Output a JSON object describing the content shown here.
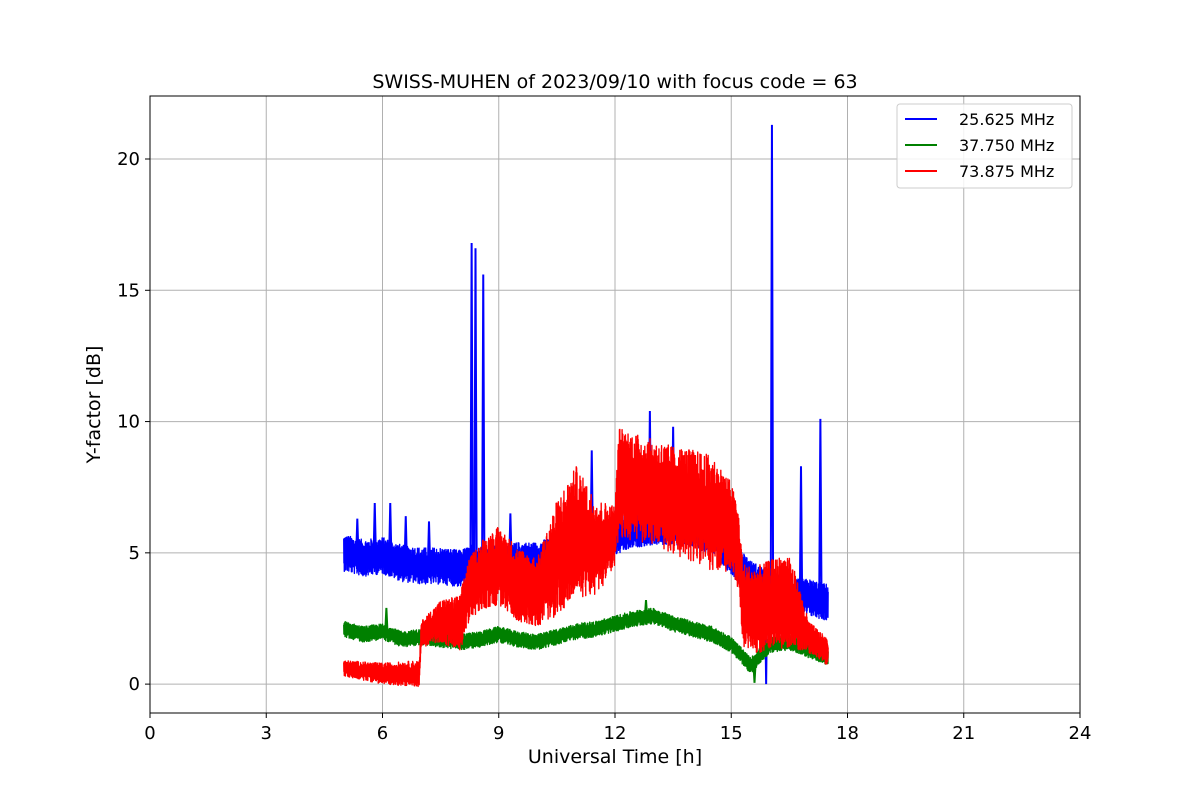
{
  "chart_data": {
    "type": "line",
    "title": "SWISS-MUHEN of 2023/09/10 with focus code = 63",
    "xlabel": "Universal Time [h]",
    "ylabel": "Y-factor [dB]",
    "xlim": [
      0,
      24
    ],
    "ylim": [
      -1.1,
      22.4
    ],
    "xticks": [
      0,
      3,
      6,
      9,
      12,
      15,
      18,
      21,
      24
    ],
    "yticks": [
      0,
      5,
      10,
      15,
      20
    ],
    "grid": true,
    "legend_position": "top-right",
    "series": [
      {
        "name": "25.625 MHz",
        "color": "#0000ff",
        "noise": 0.7,
        "points": [
          [
            5.0,
            5.0
          ],
          [
            5.5,
            4.8
          ],
          [
            6.0,
            4.9
          ],
          [
            6.5,
            4.6
          ],
          [
            7.0,
            4.5
          ],
          [
            7.5,
            4.5
          ],
          [
            8.0,
            4.4
          ],
          [
            8.3,
            4.6
          ],
          [
            8.6,
            4.5
          ],
          [
            9.0,
            4.6
          ],
          [
            9.5,
            4.7
          ],
          [
            10.0,
            4.7
          ],
          [
            10.5,
            5.0
          ],
          [
            11.0,
            5.3
          ],
          [
            11.5,
            5.4
          ],
          [
            12.0,
            5.6
          ],
          [
            12.5,
            5.9
          ],
          [
            13.0,
            6.0
          ],
          [
            13.5,
            6.0
          ],
          [
            14.0,
            5.9
          ],
          [
            14.5,
            5.6
          ],
          [
            15.0,
            4.9
          ],
          [
            15.5,
            4.0
          ],
          [
            16.0,
            3.6
          ],
          [
            16.5,
            3.3
          ],
          [
            17.0,
            3.3
          ],
          [
            17.5,
            3.1
          ]
        ],
        "spikes": [
          [
            5.35,
            6.3
          ],
          [
            5.8,
            6.9
          ],
          [
            6.2,
            6.9
          ],
          [
            6.6,
            6.4
          ],
          [
            7.2,
            6.2
          ],
          [
            8.3,
            16.8
          ],
          [
            8.4,
            16.6
          ],
          [
            8.6,
            15.6
          ],
          [
            9.3,
            6.5
          ],
          [
            11.4,
            8.9
          ],
          [
            12.9,
            10.4
          ],
          [
            13.5,
            9.8
          ],
          [
            16.05,
            21.3
          ],
          [
            16.8,
            8.3
          ],
          [
            17.3,
            10.1
          ]
        ],
        "dips": [
          [
            15.9,
            0.0
          ],
          [
            16.6,
            2.0
          ]
        ]
      },
      {
        "name": "37.750 MHz",
        "color": "#008000",
        "noise": 0.3,
        "points": [
          [
            5.0,
            2.1
          ],
          [
            5.5,
            1.9
          ],
          [
            6.0,
            2.0
          ],
          [
            6.5,
            1.7
          ],
          [
            7.0,
            1.8
          ],
          [
            7.5,
            1.7
          ],
          [
            8.0,
            1.6
          ],
          [
            8.5,
            1.7
          ],
          [
            9.0,
            1.9
          ],
          [
            9.5,
            1.7
          ],
          [
            10.0,
            1.6
          ],
          [
            10.5,
            1.8
          ],
          [
            11.0,
            2.0
          ],
          [
            11.5,
            2.1
          ],
          [
            12.0,
            2.3
          ],
          [
            12.5,
            2.5
          ],
          [
            13.0,
            2.6
          ],
          [
            13.5,
            2.3
          ],
          [
            14.0,
            2.1
          ],
          [
            14.5,
            1.9
          ],
          [
            15.0,
            1.5
          ],
          [
            15.5,
            0.7
          ],
          [
            16.0,
            1.5
          ],
          [
            16.5,
            1.6
          ],
          [
            17.0,
            1.3
          ],
          [
            17.5,
            1.0
          ]
        ],
        "spikes": [
          [
            6.1,
            2.9
          ],
          [
            12.8,
            3.2
          ]
        ],
        "dips": [
          [
            15.6,
            0.05
          ]
        ]
      },
      {
        "name": "73.875 MHz",
        "color": "#ff0000",
        "noise": 0.5,
        "points": [
          [
            5.0,
            0.6
          ],
          [
            5.5,
            0.5
          ],
          [
            6.0,
            0.4
          ],
          [
            6.5,
            0.4
          ],
          [
            6.95,
            0.4
          ],
          [
            7.0,
            1.9
          ],
          [
            7.5,
            2.4
          ],
          [
            8.0,
            2.3
          ],
          [
            8.2,
            3.5
          ],
          [
            8.6,
            4.2
          ],
          [
            9.0,
            4.5
          ],
          [
            9.5,
            3.8
          ],
          [
            10.0,
            3.5
          ],
          [
            10.5,
            4.8
          ],
          [
            11.0,
            5.8
          ],
          [
            11.5,
            5.2
          ],
          [
            12.0,
            5.6
          ],
          [
            12.1,
            7.7
          ],
          [
            12.5,
            7.5
          ],
          [
            13.0,
            7.3
          ],
          [
            13.5,
            7.0
          ],
          [
            14.0,
            6.8
          ],
          [
            14.5,
            6.5
          ],
          [
            15.0,
            6.0
          ],
          [
            15.2,
            5.0
          ],
          [
            15.3,
            3.0
          ],
          [
            15.6,
            2.8
          ],
          [
            16.0,
            3.0
          ],
          [
            16.5,
            3.2
          ],
          [
            17.0,
            1.8
          ],
          [
            17.5,
            1.2
          ]
        ],
        "band_half_width": [
          [
            5.0,
            0.3
          ],
          [
            7.0,
            0.5
          ],
          [
            8.2,
            1.2
          ],
          [
            9.0,
            1.5
          ],
          [
            10.0,
            1.3
          ],
          [
            10.5,
            2.2
          ],
          [
            11.0,
            2.5
          ],
          [
            12.0,
            1.2
          ],
          [
            12.1,
            2.1
          ],
          [
            13.0,
            2.0
          ],
          [
            14.5,
            2.2
          ],
          [
            15.2,
            1.5
          ],
          [
            15.3,
            1.6
          ],
          [
            16.5,
            1.8
          ],
          [
            17.0,
            0.6
          ],
          [
            17.5,
            0.5
          ]
        ]
      }
    ]
  }
}
